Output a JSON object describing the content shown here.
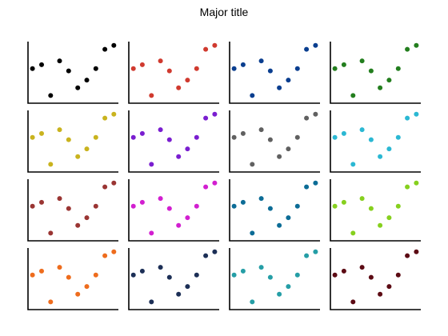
{
  "figure": {
    "title": "Major title"
  },
  "chart_data": {
    "type": "scatter",
    "layout": {
      "rows": 4,
      "cols": 4
    },
    "x": [
      1,
      2,
      3,
      4,
      5,
      6,
      7,
      8,
      9,
      10
    ],
    "y": [
      4.5,
      5.0,
      1.0,
      5.5,
      4.2,
      2.0,
      3.0,
      4.5,
      7.0,
      7.5
    ],
    "xlim": [
      0.5,
      10.5
    ],
    "ylim": [
      0,
      8
    ],
    "grid": false,
    "panels": [
      {
        "color": "#000000"
      },
      {
        "color": "#d03a2f"
      },
      {
        "color": "#0a3e8f"
      },
      {
        "color": "#237e1e"
      },
      {
        "color": "#c9b31e"
      },
      {
        "color": "#7a1ed0"
      },
      {
        "color": "#606060"
      },
      {
        "color": "#2bb8d3"
      },
      {
        "color": "#9a3533"
      },
      {
        "color": "#d21fd0"
      },
      {
        "color": "#0c6c96"
      },
      {
        "color": "#86d01e"
      },
      {
        "color": "#ee6c1d"
      },
      {
        "color": "#1c2f56"
      },
      {
        "color": "#259ea6"
      },
      {
        "color": "#5c0b14"
      }
    ]
  }
}
